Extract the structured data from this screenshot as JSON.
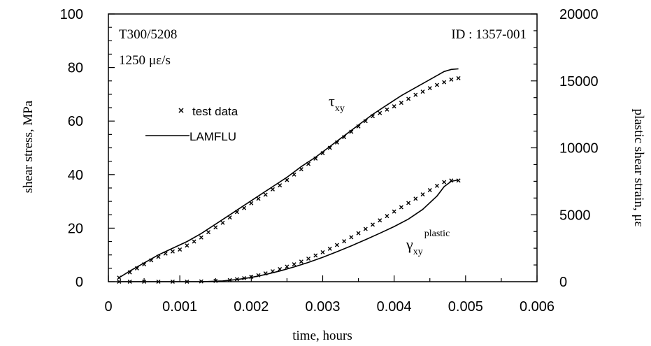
{
  "chart_data": {
    "type": "line",
    "xlabel": "time, hours",
    "ylabel_left": "shear stress, MPa",
    "ylabel_right": "plastic shear strain, με",
    "xlim": [
      0,
      0.006
    ],
    "ylim_left": [
      0,
      100
    ],
    "ylim_right": [
      0,
      20000
    ],
    "x_ticks": [
      "0",
      "0.001",
      "0.002",
      "0.003",
      "0.004",
      "0.005",
      "0.006"
    ],
    "y_ticks_left": [
      "0",
      "20",
      "40",
      "60",
      "80",
      "100"
    ],
    "y_ticks_right": [
      "0",
      "5000",
      "10000",
      "15000",
      "20000"
    ],
    "grid": false,
    "annotations": {
      "material": "T300/5208",
      "rate_number": "1250",
      "rate_unit": "με/s",
      "id": "ID : 1357-001",
      "tau_symbol": "τ",
      "tau_subscript": "xy",
      "gamma_symbol": "γ",
      "gamma_subscript": "xy",
      "gamma_superscript": "plastic"
    },
    "legend": {
      "placement": "upper-left",
      "entries": [
        {
          "label": "test data",
          "marker": "x"
        },
        {
          "label": "LAMFLU",
          "marker": "line"
        }
      ]
    },
    "series": [
      {
        "id": "stress-test",
        "axis": "left",
        "style": "points",
        "x": [
          0.00015,
          0.0003,
          0.0004,
          0.0005,
          0.0006,
          0.0007,
          0.0008,
          0.0009,
          0.001,
          0.0011,
          0.0012,
          0.0013,
          0.0014,
          0.0015,
          0.0016,
          0.0017,
          0.0018,
          0.0019,
          0.002,
          0.0021,
          0.0022,
          0.0023,
          0.0024,
          0.0025,
          0.0026,
          0.0027,
          0.0028,
          0.0029,
          0.003,
          0.0031,
          0.0032,
          0.0033,
          0.0034,
          0.0035,
          0.0036,
          0.0037,
          0.0038,
          0.0039,
          0.004,
          0.0041,
          0.0042,
          0.0043,
          0.0044,
          0.0045,
          0.0046,
          0.0047,
          0.0048,
          0.0049
        ],
        "y": [
          1.5,
          3.5,
          5,
          6.5,
          8,
          9.3,
          10.5,
          11.3,
          12,
          13.5,
          15,
          16.5,
          18.5,
          20.3,
          22,
          24,
          26,
          27.5,
          29.3,
          31,
          32.5,
          34.5,
          36,
          38,
          40,
          42,
          44,
          46,
          48,
          50,
          52,
          54,
          56,
          58,
          60,
          61.8,
          63,
          64.3,
          65.5,
          66.8,
          68.3,
          69.8,
          71,
          72.3,
          73.5,
          74.5,
          75.5,
          76
        ]
      },
      {
        "id": "stress-lamflu",
        "axis": "left",
        "style": "line",
        "x": [
          0.00015,
          0.0003,
          0.0005,
          0.0007,
          0.0009,
          0.0011,
          0.0013,
          0.0015,
          0.0017,
          0.0019,
          0.0021,
          0.0023,
          0.0025,
          0.0027,
          0.0029,
          0.0031,
          0.0033,
          0.0035,
          0.0037,
          0.0039,
          0.0041,
          0.0043,
          0.0045,
          0.0046,
          0.0047,
          0.0048,
          0.0049
        ],
        "y": [
          1.5,
          4,
          7,
          10,
          12.5,
          15,
          18,
          21.5,
          25,
          28.5,
          32,
          35.5,
          39,
          43,
          46.5,
          50.5,
          54.5,
          58.5,
          62.5,
          66,
          69.5,
          72.5,
          75.5,
          77,
          78.5,
          79.3,
          79.5
        ]
      },
      {
        "id": "strain-test",
        "axis": "right",
        "style": "points",
        "x": [
          0.00015,
          0.0003,
          0.0005,
          0.0007,
          0.0009,
          0.0011,
          0.0013,
          0.0015,
          0.0017,
          0.0018,
          0.0019,
          0.002,
          0.0021,
          0.0022,
          0.0023,
          0.0024,
          0.0025,
          0.0026,
          0.0027,
          0.0028,
          0.0029,
          0.003,
          0.0031,
          0.0032,
          0.0033,
          0.0034,
          0.0035,
          0.0036,
          0.0037,
          0.0038,
          0.0039,
          0.004,
          0.0041,
          0.0042,
          0.0043,
          0.0044,
          0.0045,
          0.0046,
          0.0047,
          0.0048,
          0.0049
        ],
        "y": [
          0,
          0,
          0,
          0,
          0,
          0,
          20,
          60,
          120,
          180,
          260,
          360,
          480,
          620,
          780,
          940,
          1120,
          1300,
          1500,
          1720,
          1960,
          2200,
          2460,
          2740,
          3020,
          3320,
          3620,
          3940,
          4260,
          4580,
          4900,
          5240,
          5560,
          5880,
          6200,
          6520,
          6840,
          7160,
          7440,
          7560,
          7560
        ]
      },
      {
        "id": "strain-lamflu",
        "axis": "right",
        "style": "line",
        "x": [
          0.00015,
          0.0005,
          0.0009,
          0.0013,
          0.0016,
          0.0018,
          0.002,
          0.0022,
          0.0024,
          0.0026,
          0.0028,
          0.003,
          0.0032,
          0.0034,
          0.0036,
          0.0038,
          0.004,
          0.0042,
          0.0044,
          0.0046,
          0.0047,
          0.0048,
          0.0049
        ],
        "y": [
          0,
          0,
          0,
          0,
          60,
          160,
          320,
          540,
          800,
          1100,
          1440,
          1820,
          2240,
          2680,
          3140,
          3620,
          4120,
          4680,
          5400,
          6400,
          7100,
          7500,
          7600
        ]
      }
    ]
  }
}
